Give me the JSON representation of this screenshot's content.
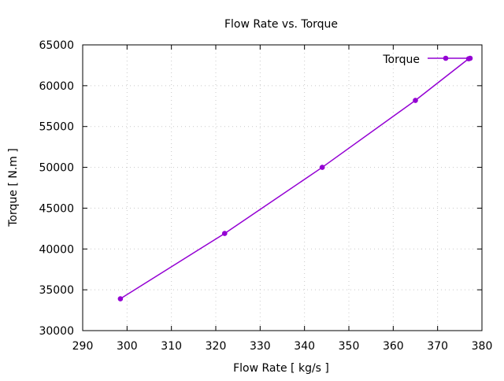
{
  "chart_data": {
    "type": "line",
    "title": "Flow Rate vs. Torque",
    "xlabel": "Flow Rate [ kg/s ]",
    "ylabel": "Torque [ N.m ]",
    "xlim": [
      290,
      380
    ],
    "ylim": [
      30000,
      65000
    ],
    "xticks": [
      "290",
      "300",
      "310",
      "320",
      "330",
      "340",
      "350",
      "360",
      "370",
      "380"
    ],
    "yticks": [
      "30000",
      "35000",
      "40000",
      "45000",
      "50000",
      "55000",
      "60000",
      "65000"
    ],
    "xtick_values": [
      290,
      300,
      310,
      320,
      330,
      340,
      350,
      360,
      370,
      380
    ],
    "ytick_values": [
      30000,
      35000,
      40000,
      45000,
      50000,
      55000,
      60000,
      65000
    ],
    "grid": true,
    "legend_position": "top-right",
    "series": [
      {
        "name": "Torque",
        "color": "#9400d3",
        "x": [
          298.5,
          322,
          344,
          365,
          377
        ],
        "y": [
          33900,
          41900,
          50000,
          58200,
          63300
        ]
      }
    ]
  }
}
